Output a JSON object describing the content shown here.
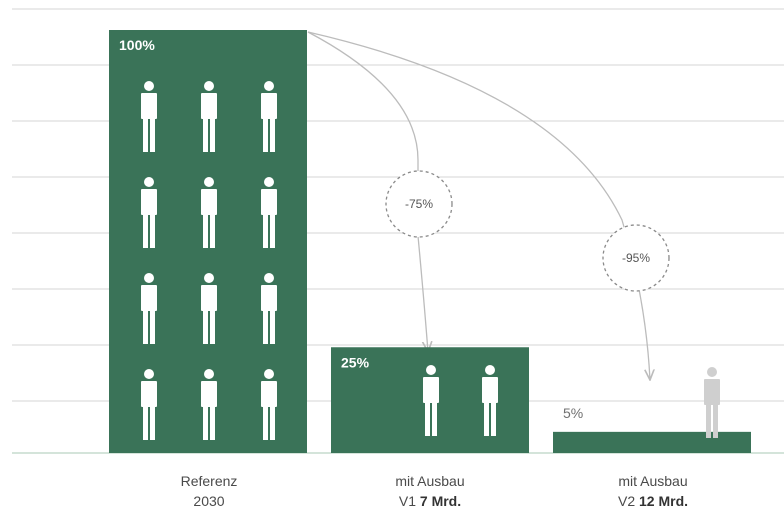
{
  "chart_data": {
    "type": "bar",
    "ylim": [
      0,
      100
    ],
    "grid": true,
    "categories": [
      {
        "line1": "Referenz",
        "line2_pre": "2030",
        "line2_bold": ""
      },
      {
        "line1": "mit Ausbau",
        "line2_pre": "V1 ",
        "line2_bold": "7 Mrd."
      },
      {
        "line1": "mit Ausbau",
        "line2_pre": "V2 ",
        "line2_bold": "12 Mrd."
      }
    ],
    "values": [
      100,
      25,
      5
    ],
    "data_labels": [
      "100%",
      "25%",
      "5%"
    ],
    "people_icons": [
      12,
      2,
      1
    ],
    "reductions": [
      {
        "label": "-75%",
        "from": 0,
        "to": 1
      },
      {
        "label": "-95%",
        "from": 0,
        "to": 2
      }
    ],
    "colors": {
      "bar": "#3a7358",
      "grid": "#d4d4d4",
      "axis": "#c5dccd",
      "icon_on_bar": "#ffffff",
      "icon_off_bar": "#cfcfcf",
      "arrow": "#bcbcbc",
      "dashed_circle": "#8a8a8a"
    },
    "icon_name": "person-icon"
  }
}
